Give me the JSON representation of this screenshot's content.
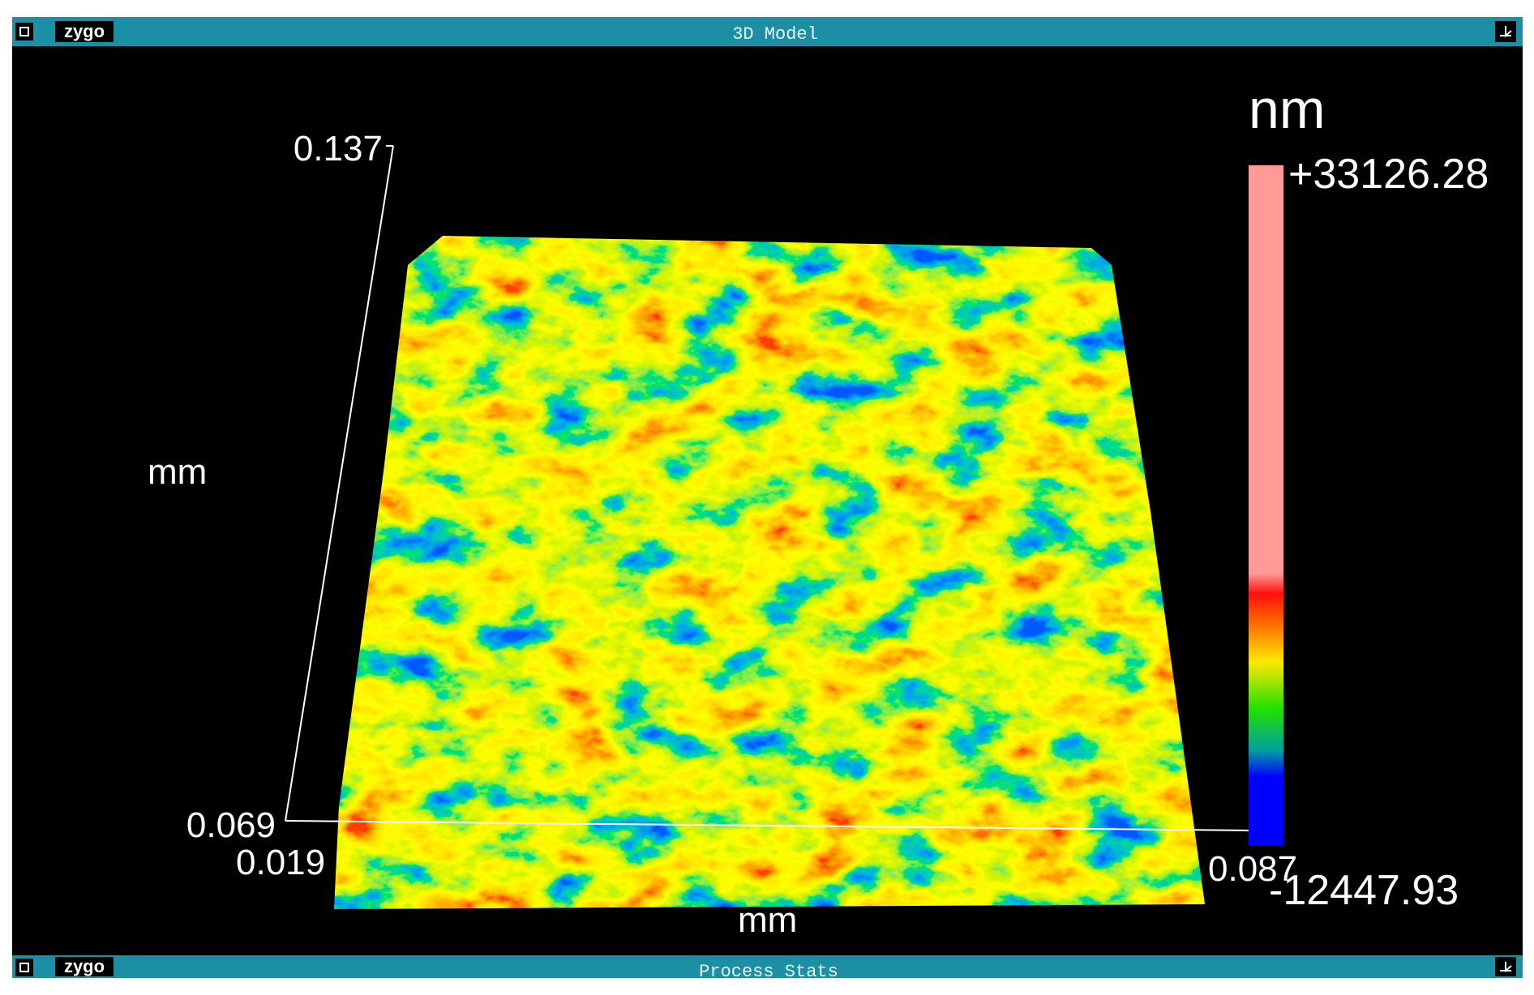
{
  "window": {
    "logo": "zygo",
    "title": "3D Model"
  },
  "axes": {
    "y_top": "0.137",
    "y_unit": "mm",
    "y_bottom": "0.069",
    "x_left": "0.019",
    "x_right": "0.087",
    "x_unit": "mm"
  },
  "colorbar": {
    "unit": "nm",
    "max": "+33126.28",
    "min": "-12447.93"
  },
  "lower_window": {
    "logo": "zygo",
    "title": "Process Stats"
  }
}
